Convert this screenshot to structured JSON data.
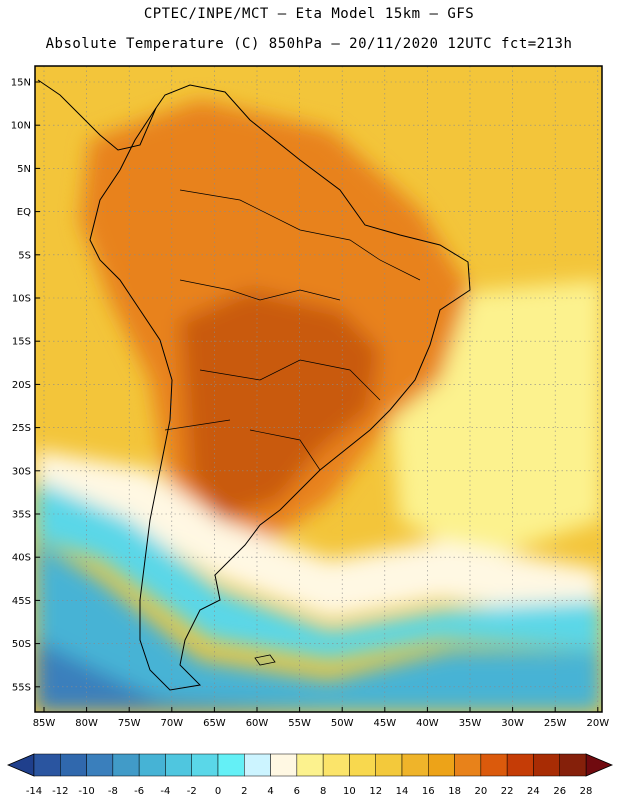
{
  "title": {
    "line1": "CPTEC/INPE/MCT –  Eta Model 15km – GFS",
    "line2": "Absolute Temperature (C) 850hPa – 20/11/2020 12UTC fct=213h"
  },
  "lat_labels": [
    "15N",
    "10N",
    "5N",
    "EQ",
    "5S",
    "10S",
    "15S",
    "20S",
    "25S",
    "30S",
    "35S",
    "40S",
    "45S",
    "50S",
    "55S"
  ],
  "lon_labels": [
    "85W",
    "80W",
    "75W",
    "70W",
    "65W",
    "60W",
    "55W",
    "50W",
    "45W",
    "40W",
    "35W",
    "30W",
    "25W",
    "20W"
  ],
  "colorbar": {
    "ticks": [
      "-14",
      "-12",
      "-10",
      "-8",
      "-6",
      "-4",
      "-2",
      "0",
      "2",
      "4",
      "6",
      "8",
      "10",
      "12",
      "14",
      "16",
      "18",
      "20",
      "22",
      "24",
      "26",
      "28"
    ],
    "colors": [
      "#1f3f8c",
      "#2a55a0",
      "#3068ad",
      "#3a7fbc",
      "#419bc8",
      "#46b3d5",
      "#4fc6df",
      "#5ad7e8",
      "#64f0f6",
      "#ccf4ff",
      "#fff8e3",
      "#fcf28e",
      "#fbe46a",
      "#f8d84e",
      "#f3c93b",
      "#efb42a",
      "#eda318",
      "#e8821a",
      "#db5a0c",
      "#c53c06",
      "#a82c04",
      "#85200a",
      "#700a0f"
    ]
  },
  "field_colors": {
    "ocean_warm": "#f3c53a",
    "land_hot": "#e8821a",
    "core_hot": "#c95a10",
    "pale": "#fcf28e",
    "cream": "#fff8e3",
    "cyan": "#5ad7e8",
    "aqua": "#46b3d5",
    "blue": "#3a7fbc"
  }
}
